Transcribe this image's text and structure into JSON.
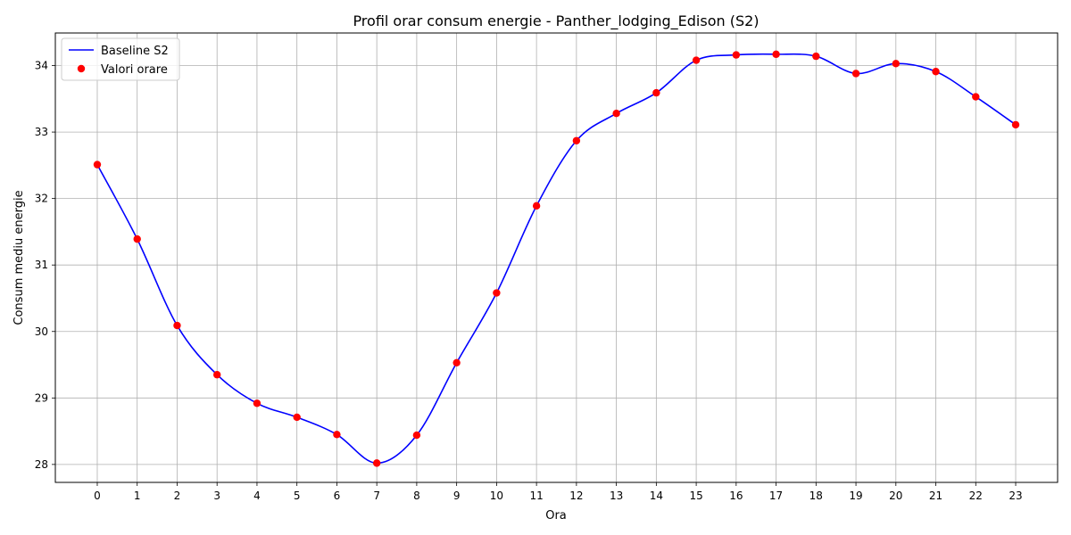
{
  "chart_data": {
    "type": "line",
    "title": "Profil orar consum energie - Panther_lodging_Edison (S2)",
    "xlabel": "Ora",
    "ylabel": "Consum mediu energie",
    "x": [
      0,
      1,
      2,
      3,
      4,
      5,
      6,
      7,
      8,
      9,
      10,
      11,
      12,
      13,
      14,
      15,
      16,
      17,
      18,
      19,
      20,
      21,
      22,
      23
    ],
    "x_tick_labels": [
      "0",
      "1",
      "2",
      "3",
      "4",
      "5",
      "6",
      "7",
      "8",
      "9",
      "10",
      "11",
      "12",
      "13",
      "14",
      "15",
      "16",
      "17",
      "18",
      "19",
      "20",
      "21",
      "22",
      "23"
    ],
    "y_ticks": [
      28,
      29,
      30,
      31,
      32,
      33,
      34
    ],
    "xlim": [
      -1.05,
      24.05
    ],
    "ylim": [
      27.73,
      34.49
    ],
    "grid": true,
    "legend_position": "top-left",
    "series": [
      {
        "name": "Baseline S2",
        "kind": "smooth-line",
        "color": "#0000ff",
        "values": [
          32.51,
          31.39,
          30.09,
          29.35,
          28.92,
          28.71,
          28.45,
          28.02,
          28.44,
          29.53,
          30.58,
          31.89,
          32.87,
          33.28,
          33.59,
          34.08,
          34.16,
          34.17,
          34.14,
          33.88,
          34.03,
          33.91,
          33.53,
          33.11
        ]
      },
      {
        "name": "Valori orare",
        "kind": "scatter",
        "color": "#ff0000",
        "values": [
          32.51,
          31.39,
          30.09,
          29.35,
          28.92,
          28.71,
          28.45,
          28.02,
          28.44,
          29.53,
          30.58,
          31.89,
          32.87,
          33.28,
          33.59,
          34.08,
          34.16,
          34.17,
          34.14,
          33.88,
          34.03,
          33.91,
          33.53,
          33.11
        ]
      }
    ]
  }
}
